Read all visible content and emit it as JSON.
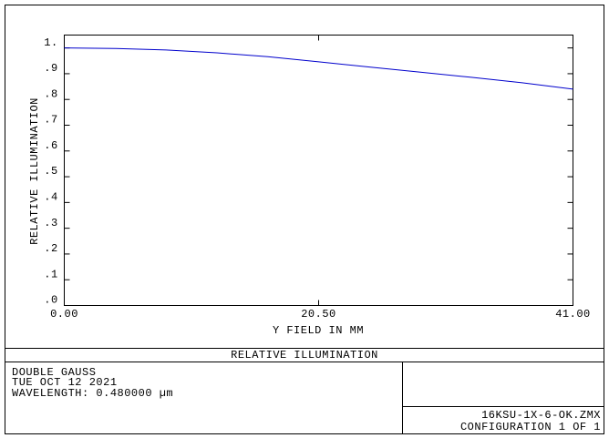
{
  "chart_data": {
    "type": "line",
    "ylabel": "RELATIVE ILLUMINATION",
    "xlabel": "Y FIELD IN  MM",
    "x": [
      0,
      4.1,
      8.2,
      12.3,
      16.4,
      20.5,
      24.6,
      28.7,
      32.8,
      36.9,
      41
    ],
    "values": [
      1.0,
      0.998,
      0.992,
      0.981,
      0.966,
      0.946,
      0.926,
      0.906,
      0.886,
      0.865,
      0.84
    ],
    "color": "#0000cc",
    "xlim": [
      0,
      41
    ],
    "xticks": [
      {
        "value": 0,
        "label": "0.00"
      },
      {
        "value": 20.5,
        "label": "20.50"
      },
      {
        "value": 41,
        "label": "41.00"
      }
    ],
    "ylim": [
      0,
      1.05
    ],
    "yticks": [
      {
        "value": 0,
        "label": ".0"
      },
      {
        "value": 0.1,
        "label": ".1"
      },
      {
        "value": 0.2,
        "label": ".2"
      },
      {
        "value": 0.3,
        "label": ".3"
      },
      {
        "value": 0.4,
        "label": ".4"
      },
      {
        "value": 0.5,
        "label": ".5"
      },
      {
        "value": 0.6,
        "label": ".6"
      },
      {
        "value": 0.7,
        "label": ".7"
      },
      {
        "value": 0.8,
        "label": ".8"
      },
      {
        "value": 0.9,
        "label": ".9"
      },
      {
        "value": 1,
        "label": "1."
      }
    ]
  },
  "footer": {
    "title": "RELATIVE ILLUMINATION",
    "lines": [
      "DOUBLE GAUSS",
      "TUE OCT 12 2021",
      "WAVELENGTH: 0.480000 µm"
    ],
    "file": "16KSU-1X-6-OK.ZMX",
    "config": "CONFIGURATION 1 OF 1"
  }
}
